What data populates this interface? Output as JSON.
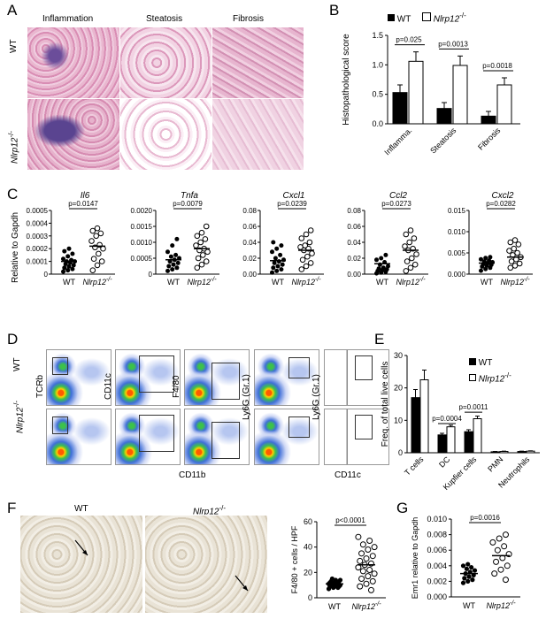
{
  "panels": {
    "A": {
      "letter": "A",
      "col_headers": [
        "Inflammation",
        "Steatosis",
        "Fibrosis"
      ],
      "row_labels": [
        "WT",
        "Nlrp12",
        "-/-"
      ]
    },
    "B": {
      "letter": "B",
      "legend": [
        "WT",
        "Nlrp12",
        "-/-"
      ],
      "chart_data": {
        "type": "bar",
        "ylabel": "Histopathological score",
        "ylim": [
          0,
          1.5
        ],
        "yticks": [
          "0.0",
          "0.5",
          "1.0",
          "1.5"
        ],
        "categories": [
          "Inflamma.",
          "Steatosis",
          "Fibrosis"
        ],
        "series": [
          {
            "name": "WT",
            "values": [
              0.53,
              0.26,
              0.13
            ],
            "err": [
              0.13,
              0.1,
              0.08
            ]
          },
          {
            "name": "Nlrp12-/-",
            "values": [
              1.06,
              0.99,
              0.66
            ],
            "err": [
              0.16,
              0.16,
              0.12
            ]
          }
        ],
        "pvalues": [
          "p=0.025",
          "p=0.0013",
          "p=0.0018"
        ]
      }
    },
    "C": {
      "letter": "C",
      "ylabel": "Relative to Gapdh",
      "xcats": [
        "WT",
        "Nlrp12",
        "-/-"
      ],
      "chart_data": [
        {
          "type": "scatter",
          "title": "Il6",
          "p": "p=0.0147",
          "ymax": 0.0005,
          "yticks": [
            "0",
            "0.0001",
            "0.0002",
            "0.0003",
            "0.0004",
            "0.0005"
          ],
          "wt": [
            2e-05,
            3e-05,
            4e-05,
            5e-05,
            6e-05,
            7e-05,
            8e-05,
            9e-05,
            0.0001,
            0.0001,
            0.00011,
            0.00012,
            0.00014,
            0.00016,
            0.00018,
            0.0002
          ],
          "ko": [
            3e-05,
            7e-05,
            0.0001,
            0.00012,
            0.00016,
            0.0002,
            0.00021,
            0.00023,
            0.00026,
            0.0003,
            0.00032,
            0.00034,
            0.00036
          ],
          "wt_mean": 0.0001,
          "ko_mean": 0.00022
        },
        {
          "type": "scatter",
          "title": "Tnfa",
          "p": "p=0.0079",
          "ymax": 0.002,
          "yticks": [
            "0",
            "0.0005",
            "0.0010",
            "0.0015",
            "0.0020"
          ],
          "wt": [
            0.0001,
            0.00015,
            0.0002,
            0.00025,
            0.0003,
            0.00035,
            0.0004,
            0.00045,
            0.0005,
            0.00055,
            0.0006,
            0.0007,
            0.0009,
            0.0011
          ],
          "ko": [
            0.0002,
            0.0003,
            0.0004,
            0.0005,
            0.0006,
            0.0007,
            0.00075,
            0.0008,
            0.0009,
            0.001,
            0.0011,
            0.0012,
            0.0013,
            0.0015
          ],
          "wt_mean": 0.00045,
          "ko_mean": 0.0008
        },
        {
          "type": "scatter",
          "title": "Cxcl1",
          "p": "p=0.0239",
          "ymax": 0.08,
          "yticks": [
            "0.00",
            "0.02",
            "0.04",
            "0.06",
            "0.08"
          ],
          "wt": [
            0.002,
            0.004,
            0.006,
            0.008,
            0.01,
            0.012,
            0.014,
            0.016,
            0.018,
            0.02,
            0.024,
            0.028,
            0.032,
            0.036,
            0.04
          ],
          "ko": [
            0.006,
            0.01,
            0.014,
            0.018,
            0.022,
            0.026,
            0.03,
            0.032,
            0.034,
            0.036,
            0.04,
            0.045,
            0.05,
            0.055
          ],
          "wt_mean": 0.017,
          "ko_mean": 0.03
        },
        {
          "type": "scatter",
          "title": "Ccl2",
          "p": "p=0.0273",
          "ymax": 0.08,
          "yticks": [
            "0.00",
            "0.02",
            "0.04",
            "0.06",
            "0.08"
          ],
          "wt": [
            0.001,
            0.002,
            0.003,
            0.004,
            0.005,
            0.006,
            0.007,
            0.008,
            0.01,
            0.012,
            0.015,
            0.018,
            0.02,
            0.024
          ],
          "ko": [
            0.004,
            0.008,
            0.012,
            0.016,
            0.02,
            0.025,
            0.03,
            0.032,
            0.035,
            0.04,
            0.045,
            0.05,
            0.055
          ],
          "wt_mean": 0.013,
          "ko_mean": 0.03
        },
        {
          "type": "scatter",
          "title": "Cxcl2",
          "p": "p=0.0282",
          "ymax": 0.015,
          "yticks": [
            "0.000",
            "0.005",
            "0.010",
            "0.015"
          ],
          "wt": [
            0.0008,
            0.0012,
            0.0015,
            0.0018,
            0.002,
            0.0022,
            0.0024,
            0.0026,
            0.0028,
            0.003,
            0.0032,
            0.0035,
            0.0038,
            0.004
          ],
          "ko": [
            0.0015,
            0.002,
            0.0025,
            0.003,
            0.0035,
            0.004,
            0.0045,
            0.005,
            0.0055,
            0.006,
            0.007,
            0.0075,
            0.008
          ],
          "wt_mean": 0.0026,
          "ko_mean": 0.004
        }
      ]
    },
    "D": {
      "letter": "D",
      "row_labels": [
        "WT",
        "Nlrp12",
        "-/-"
      ],
      "axis_labels": [
        "TCRb",
        "CD11c",
        "F4/80",
        "Ly6G (Gr.1)",
        "Ly6G (Gr.1)",
        "CD11b",
        "CD11c"
      ]
    },
    "E": {
      "letter": "E",
      "legend": [
        "WT",
        "Nlrp12",
        "-/-"
      ],
      "chart_data": {
        "type": "bar",
        "ylabel": "Freq. of total live cells",
        "ylim": [
          0,
          30
        ],
        "yticks": [
          "0",
          "10",
          "20",
          "30"
        ],
        "categories": [
          "T cells",
          "DC",
          "Kupfier cells",
          "PMN",
          "Neutrophils"
        ],
        "series": [
          {
            "name": "WT",
            "values": [
              17,
              5.5,
              6.5,
              0.3,
              0.4
            ],
            "err": [
              2.5,
              0.5,
              0.6,
              0.1,
              0.1
            ]
          },
          {
            "name": "Nlrp12-/-",
            "values": [
              22.5,
              8,
              10.5,
              0.4,
              0.5
            ],
            "err": [
              3,
              0.5,
              0.8,
              0.1,
              0.1
            ]
          }
        ],
        "pvalues": [
          "p=0.0004",
          "p=0.0011"
        ]
      }
    },
    "F": {
      "letter": "F",
      "image_labels": [
        "WT",
        "Nlrp12",
        "-/-"
      ],
      "chart_data": {
        "type": "scatter",
        "ylabel": "F4/80 + cells / HPF",
        "ylim": [
          0,
          60
        ],
        "yticks": [
          "0",
          "20",
          "40",
          "60"
        ],
        "p": "p<0.0001",
        "xcats": [
          "WT",
          "Nlrp12",
          "-/-"
        ],
        "wt": [
          7,
          8,
          8,
          9,
          9,
          9,
          10,
          10,
          10,
          10,
          11,
          11,
          11,
          12,
          12,
          12,
          13,
          13,
          14,
          14,
          15
        ],
        "ko": [
          6,
          9,
          11,
          13,
          15,
          17,
          19,
          21,
          22,
          24,
          26,
          27,
          29,
          31,
          33,
          35,
          38,
          40,
          42,
          45,
          48
        ],
        "wt_mean": 11,
        "ko_mean": 26
      }
    },
    "G": {
      "letter": "G",
      "chart_data": {
        "type": "scatter",
        "ylabel": "Emr1 relative to Gapdh",
        "ylim": [
          0,
          0.01
        ],
        "yticks": [
          "0.000",
          "0.002",
          "0.004",
          "0.006",
          "0.008",
          "0.010"
        ],
        "p": "p=0.0016",
        "xcats": [
          "WT",
          "Nlrp12",
          "-/-"
        ],
        "wt": [
          0.0018,
          0.002,
          0.0022,
          0.0024,
          0.0026,
          0.0028,
          0.003,
          0.0032,
          0.0034,
          0.0036,
          0.0038,
          0.004,
          0.0042
        ],
        "ko": [
          0.0022,
          0.003,
          0.0035,
          0.004,
          0.0045,
          0.005,
          0.0055,
          0.006,
          0.0065,
          0.007,
          0.0075,
          0.008
        ],
        "wt_mean": 0.003,
        "ko_mean": 0.0053
      }
    }
  }
}
